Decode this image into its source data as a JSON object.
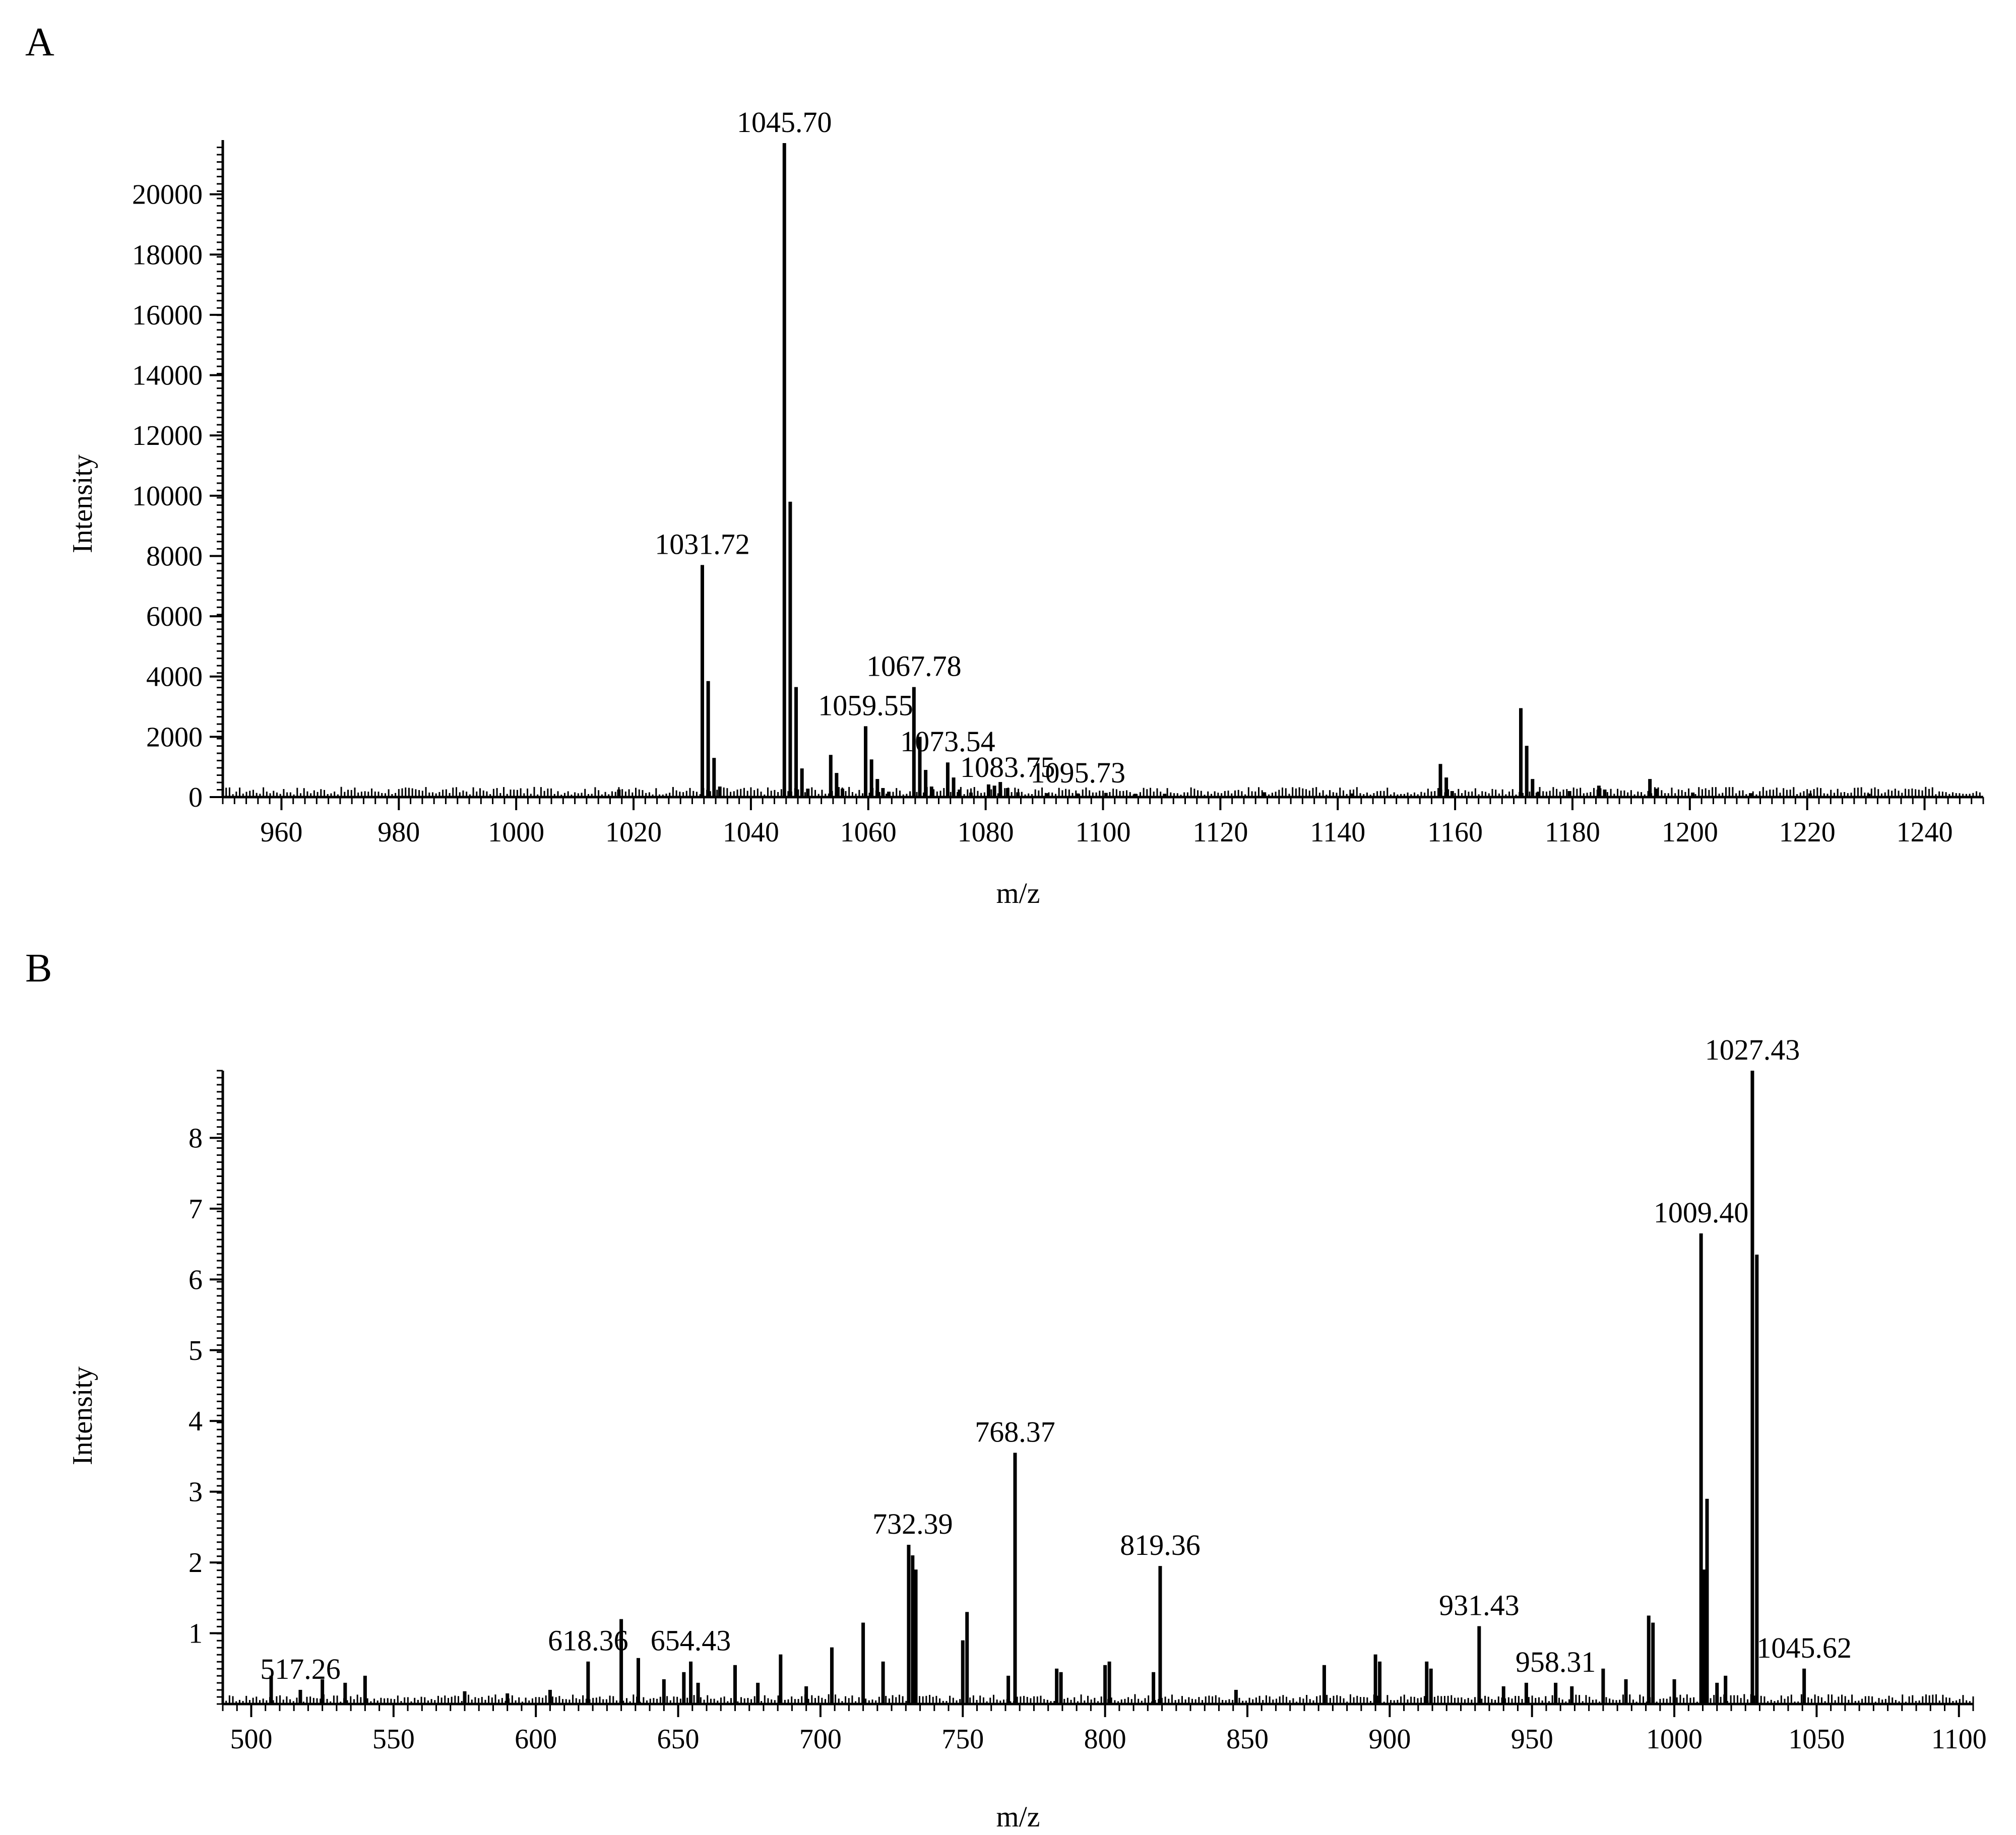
{
  "chart_data": [
    {
      "panel_label": "A",
      "type": "bar",
      "xlabel": "m/z",
      "ylabel": "Intensity",
      "xlim": [
        950,
        1250
      ],
      "ylim": [
        0,
        21800
      ],
      "xticks": [
        960,
        980,
        1000,
        1020,
        1040,
        1060,
        1080,
        1100,
        1120,
        1140,
        1160,
        1180,
        1200,
        1220,
        1240
      ],
      "yticks": [
        0,
        2000,
        4000,
        6000,
        8000,
        10000,
        12000,
        14000,
        16000,
        18000,
        20000
      ],
      "x": [
        1017.5,
        1031.72,
        1032.72,
        1033.72,
        1034.7,
        1045.7,
        1046.7,
        1047.7,
        1048.7,
        1049.7,
        1053.6,
        1054.6,
        1055.6,
        1059.55,
        1060.55,
        1061.55,
        1062.5,
        1063.5,
        1067.78,
        1068.78,
        1069.78,
        1070.78,
        1073.54,
        1074.54,
        1075.54,
        1077.5,
        1080.5,
        1081.5,
        1082.5,
        1083.75,
        1085.5,
        1090.5,
        1095.73,
        1100.5,
        1105.5,
        1110.5,
        1127.5,
        1142.5,
        1157.5,
        1158.5,
        1159.5,
        1171.2,
        1172.2,
        1173.2,
        1174.2,
        1179.5,
        1184.5,
        1185.5,
        1193.2,
        1194.2,
        1200.5,
        1210.5,
        1220.5,
        1230.5
      ],
      "y": [
        250,
        7700,
        3850,
        1300,
        350,
        21700,
        9800,
        3650,
        950,
        280,
        1400,
        800,
        280,
        2350,
        1250,
        600,
        300,
        180,
        3650,
        2000,
        900,
        350,
        1150,
        650,
        250,
        150,
        420,
        380,
        500,
        300,
        160,
        130,
        120,
        140,
        110,
        110,
        160,
        120,
        1100,
        650,
        200,
        2950,
        1700,
        600,
        180,
        200,
        380,
        250,
        600,
        280,
        150,
        130,
        120,
        110
      ],
      "annotations": [
        {
          "label": "1031.72",
          "x": 1031.72,
          "y": 7700
        },
        {
          "label": "1045.70",
          "x": 1045.7,
          "y": 21700
        },
        {
          "label": "1059.55",
          "x": 1059.55,
          "y": 2350
        },
        {
          "label": "1067.78",
          "x": 1067.78,
          "y": 3650
        },
        {
          "label": "1073.54",
          "x": 1073.54,
          "y": 1150
        },
        {
          "label": "1083.75",
          "x": 1083.75,
          "y": 300
        },
        {
          "label": "1095.73",
          "x": 1095.73,
          "y": 120
        }
      ]
    },
    {
      "panel_label": "B",
      "type": "bar",
      "xlabel": "m/z",
      "ylabel": "Intensity",
      "xlim": [
        490,
        1105
      ],
      "ylim": [
        0,
        8.95
      ],
      "xticks": [
        500,
        550,
        600,
        650,
        700,
        750,
        800,
        850,
        900,
        950,
        1000,
        1050,
        1100
      ],
      "yticks": [
        1,
        2,
        3,
        4,
        5,
        6,
        7,
        8
      ],
      "x": [
        507.0,
        517.26,
        525.0,
        533.0,
        540.0,
        575.0,
        590.0,
        605.0,
        618.36,
        630.0,
        636.0,
        645.0,
        652.0,
        654.43,
        657.0,
        670.0,
        678.0,
        686.0,
        695.0,
        704.0,
        715.0,
        722.0,
        731.0,
        732.39,
        733.5,
        750.0,
        751.5,
        766.0,
        768.37,
        783.0,
        784.5,
        800.0,
        801.5,
        817.0,
        819.36,
        846.0,
        877.0,
        895.0,
        896.5,
        913.0,
        914.5,
        931.43,
        940.0,
        948.0,
        958.31,
        964.0,
        975.0,
        983.0,
        991.0,
        992.5,
        1000.0,
        1009.4,
        1010.5,
        1011.5,
        1015.0,
        1018.0,
        1027.43,
        1029.0,
        1045.62
      ],
      "y": [
        0.4,
        0.2,
        0.35,
        0.3,
        0.4,
        0.18,
        0.15,
        0.2,
        0.6,
        1.2,
        0.65,
        0.35,
        0.45,
        0.6,
        0.3,
        0.55,
        0.3,
        0.7,
        0.25,
        0.8,
        1.15,
        0.6,
        2.25,
        2.1,
        1.9,
        0.9,
        1.3,
        0.4,
        3.55,
        0.5,
        0.45,
        0.55,
        0.6,
        0.45,
        1.95,
        0.2,
        0.55,
        0.7,
        0.6,
        0.6,
        0.5,
        1.1,
        0.25,
        0.3,
        0.3,
        0.25,
        0.5,
        0.35,
        1.25,
        1.15,
        0.35,
        6.65,
        1.9,
        2.9,
        0.3,
        0.4,
        8.95,
        6.35,
        0.5
      ],
      "annotations": [
        {
          "label": "517.26",
          "x": 517.26,
          "y": 0.2
        },
        {
          "label": "618.36",
          "x": 618.36,
          "y": 0.6
        },
        {
          "label": "654.43",
          "x": 654.43,
          "y": 0.6
        },
        {
          "label": "732.39",
          "x": 732.39,
          "y": 2.25
        },
        {
          "label": "768.37",
          "x": 768.37,
          "y": 3.55
        },
        {
          "label": "819.36",
          "x": 819.36,
          "y": 1.95
        },
        {
          "label": "931.43",
          "x": 931.43,
          "y": 1.1
        },
        {
          "label": "958.31",
          "x": 958.31,
          "y": 0.3
        },
        {
          "label": "1009.40",
          "x": 1009.4,
          "y": 6.65
        },
        {
          "label": "1027.43",
          "x": 1027.43,
          "y": 8.95
        },
        {
          "label": "1045.62",
          "x": 1045.62,
          "y": 0.5
        }
      ]
    }
  ]
}
